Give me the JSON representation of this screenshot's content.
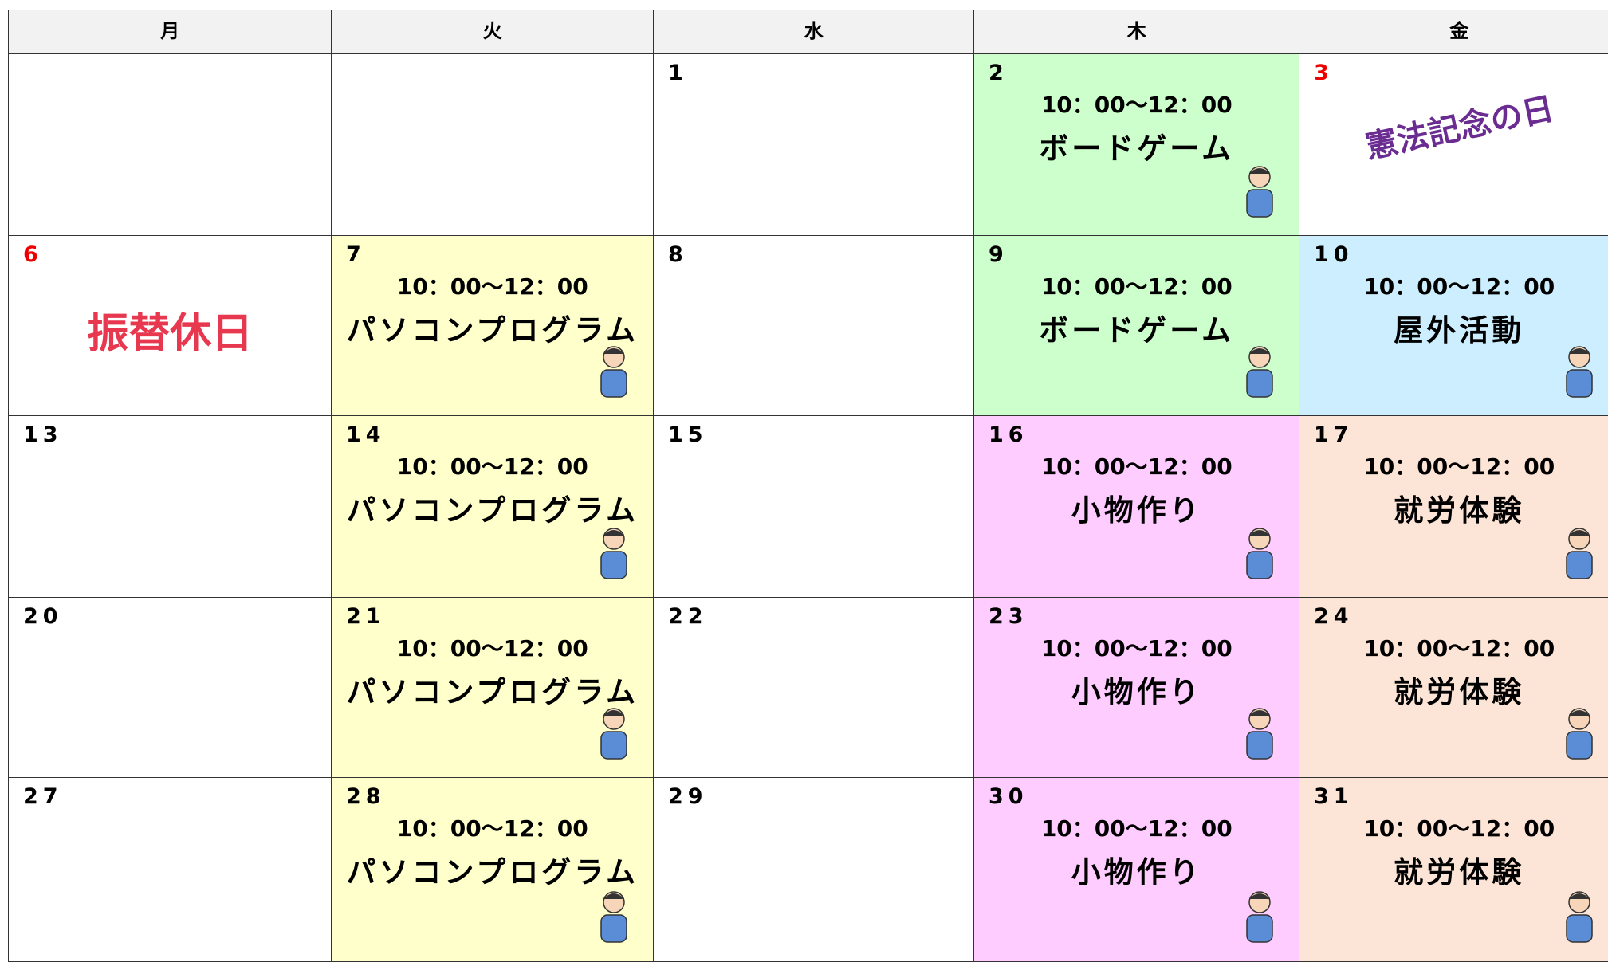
{
  "calendar": {
    "headers": [
      "月",
      "火",
      "水",
      "木",
      "金"
    ],
    "weeks": [
      [
        null,
        null,
        {
          "day": "1"
        },
        {
          "day": "2",
          "time": "10：00～12：00",
          "activity": "ボードゲーム",
          "color": "#ccffcc"
        },
        {
          "day": "3",
          "holiday": true,
          "label": "憲法記念の日"
        }
      ],
      [
        {
          "day": "6",
          "holiday": true,
          "label": "振替休日"
        },
        {
          "day": "7",
          "time": "10：00～12：00",
          "activity": "パソコンプログラム",
          "color": "#ffffcc"
        },
        {
          "day": "8"
        },
        {
          "day": "9",
          "time": "10：00～12：00",
          "activity": "ボードゲーム",
          "color": "#ccffcc"
        },
        {
          "day": "10",
          "time": "10：00～12：00",
          "activity": "屋外活動",
          "color": "#cceeff"
        }
      ],
      [
        {
          "day": "13"
        },
        {
          "day": "14",
          "time": "10：00～12：00",
          "activity": "パソコンプログラム",
          "color": "#ffffcc"
        },
        {
          "day": "15"
        },
        {
          "day": "16",
          "time": "10：00～12：00",
          "activity": "小物作り",
          "color": "#ffccff"
        },
        {
          "day": "17",
          "time": "10：00～12：00",
          "activity": "就労体験",
          "color": "#fce4d6"
        }
      ],
      [
        {
          "day": "20"
        },
        {
          "day": "21",
          "time": "10：00～12：00",
          "activity": "パソコンプログラム",
          "color": "#ffffcc"
        },
        {
          "day": "22"
        },
        {
          "day": "23",
          "time": "10：00～12：00",
          "activity": "小物作り",
          "color": "#ffccff"
        },
        {
          "day": "24",
          "time": "10：00～12：00",
          "activity": "就労体験",
          "color": "#fce4d6"
        }
      ],
      [
        {
          "day": "27"
        },
        {
          "day": "28",
          "time": "10：00～12：00",
          "activity": "パソコンプログラム",
          "color": "#ffffcc"
        },
        {
          "day": "29"
        },
        {
          "day": "30",
          "time": "10：00～12：00",
          "activity": "小物作り",
          "color": "#ffccff"
        },
        {
          "day": "31",
          "time": "10：00～12：00",
          "activity": "就労体験",
          "color": "#fce4d6"
        }
      ]
    ]
  }
}
